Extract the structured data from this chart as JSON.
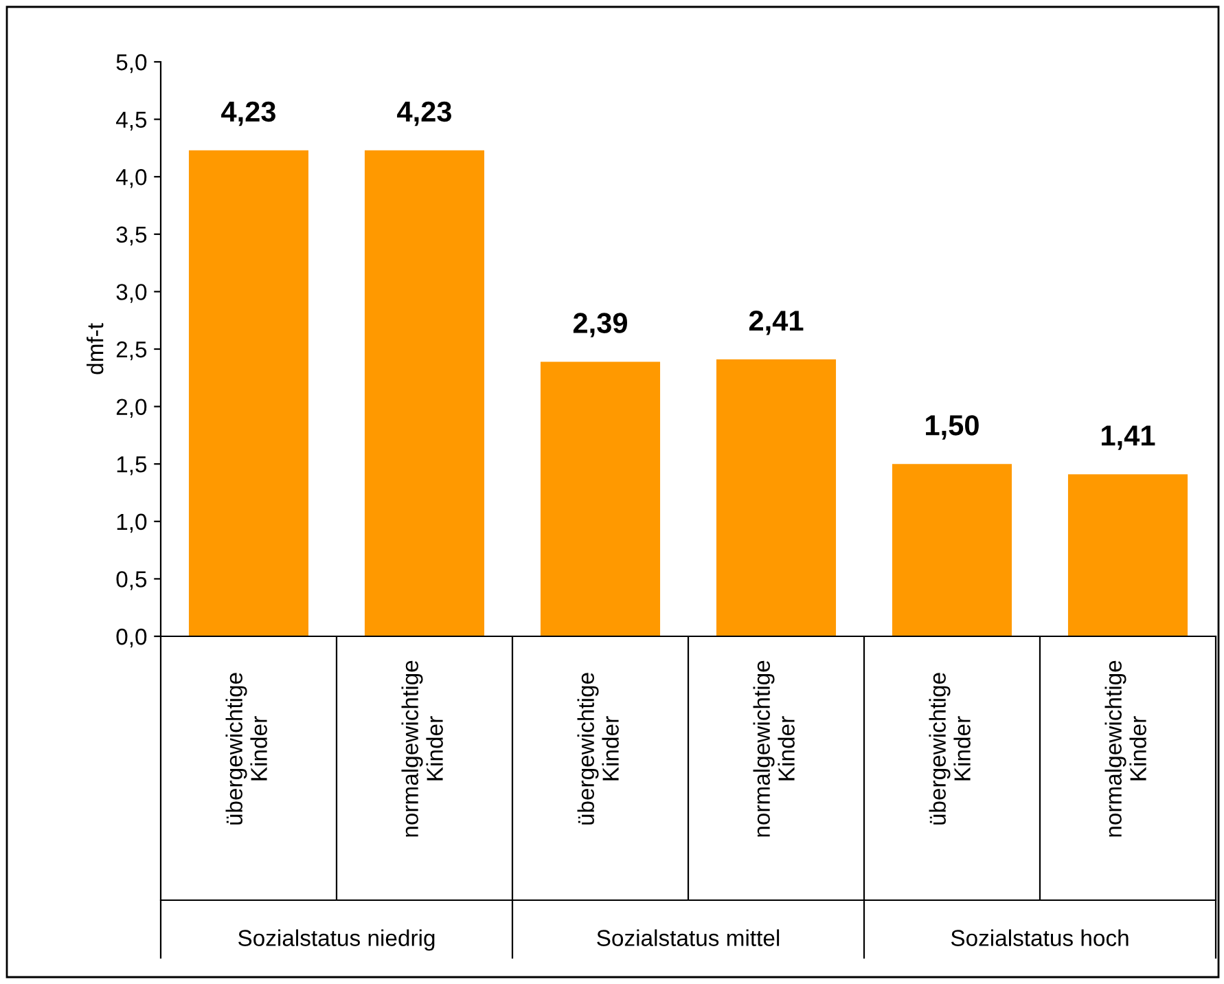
{
  "chart_data": {
    "type": "bar",
    "ylabel": "dmf-t",
    "categories": [
      "übergewichtige\nKinder",
      "normalgewichtige\nKinder",
      "übergewichtige\nKinder",
      "normalgewichtige\nKinder",
      "übergewichtige\nKinder",
      "normalgewichtige\nKinder"
    ],
    "values": [
      4.23,
      4.23,
      2.39,
      2.41,
      1.5,
      1.41
    ],
    "value_labels": [
      "4,23",
      "4,23",
      "2,39",
      "2,41",
      "1,50",
      "1,41"
    ],
    "color": "#ff9900",
    "annotations": [
      "Sozialstatus niedrig",
      "Sozialstatus mittel",
      "Sozialstatus hoch"
    ],
    "ylim": [
      0,
      5
    ],
    "yticks": [
      {
        "value": 0,
        "label": "0,0"
      },
      {
        "value": 0.5,
        "label": "0,5"
      },
      {
        "value": 1,
        "label": "1,0"
      },
      {
        "value": 1.5,
        "label": "1,5"
      },
      {
        "value": 2,
        "label": "2,0"
      },
      {
        "value": 2.5,
        "label": "2,5"
      },
      {
        "value": 3,
        "label": "3,0"
      },
      {
        "value": 3.5,
        "label": "3,5"
      },
      {
        "value": 4,
        "label": "4,0"
      },
      {
        "value": 4.5,
        "label": "4,5"
      },
      {
        "value": 5,
        "label": "5,0"
      }
    ],
    "grid": false,
    "legend": false
  }
}
